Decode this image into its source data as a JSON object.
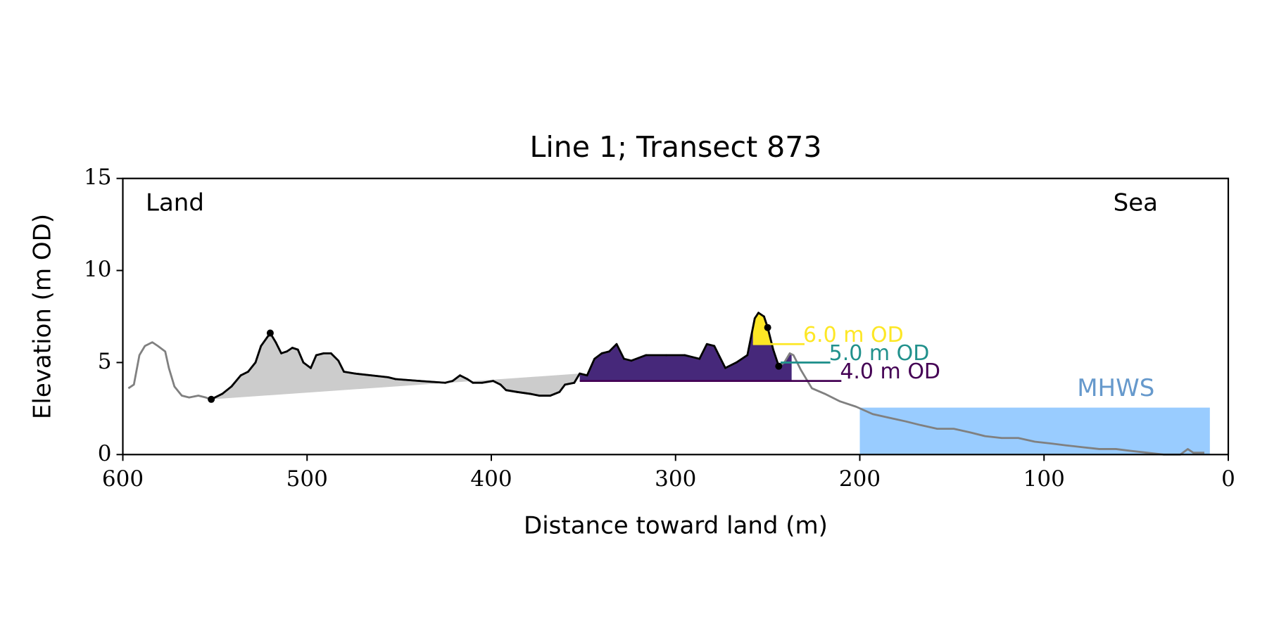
{
  "chart_data": {
    "type": "line",
    "title": "Line 1; Transect 873",
    "x_label": "Distance toward land (m)",
    "y_label": "Elevation (m OD)",
    "xlim": [
      600,
      0
    ],
    "ylim": [
      0,
      15
    ],
    "xticks": [
      600,
      500,
      400,
      300,
      200,
      100,
      0
    ],
    "yticks": [
      0,
      5,
      10,
      15
    ],
    "annotations": {
      "land": "Land",
      "sea": "Sea"
    },
    "series": [
      {
        "color": "#808080",
        "x": [
          597,
          594,
          591,
          588,
          584,
          581,
          577,
          575,
          572,
          568,
          564,
          559,
          555,
          552,
          546,
          541,
          536,
          532,
          528,
          525,
          520,
          517,
          514,
          511,
          508,
          505,
          502,
          498,
          495,
          491,
          487,
          483,
          480,
          474,
          465,
          456,
          452,
          439,
          425,
          421,
          417,
          413,
          410,
          405,
          399,
          395,
          392,
          386,
          379,
          374,
          368,
          363,
          360,
          355,
          352,
          348,
          344,
          340,
          336,
          332,
          328,
          324,
          316,
          305,
          295,
          287,
          283,
          279,
          276,
          273,
          267,
          261,
          257,
          255,
          252,
          250,
          247,
          244,
          241,
          238,
          236,
          232,
          226,
          219,
          211,
          202,
          193,
          184,
          175,
          167,
          158,
          149,
          140,
          132,
          123,
          114,
          105,
          96,
          88,
          79,
          70,
          61,
          53,
          44,
          35,
          26,
          22,
          19,
          13
        ],
        "y": [
          3.6,
          3.8,
          5.4,
          5.9,
          6.1,
          5.9,
          5.6,
          4.7,
          3.7,
          3.2,
          3.1,
          3.2,
          3.1,
          3.0,
          3.3,
          3.7,
          4.3,
          4.5,
          5.0,
          5.9,
          6.6,
          6.1,
          5.5,
          5.6,
          5.8,
          5.7,
          5.0,
          4.7,
          5.4,
          5.5,
          5.5,
          5.1,
          4.5,
          4.4,
          4.3,
          4.2,
          4.1,
          4.0,
          3.9,
          4.0,
          4.3,
          4.1,
          3.9,
          3.9,
          4.0,
          3.8,
          3.5,
          3.4,
          3.3,
          3.2,
          3.2,
          3.4,
          3.8,
          3.9,
          4.4,
          4.3,
          5.2,
          5.5,
          5.6,
          6.0,
          5.2,
          5.1,
          5.4,
          5.4,
          5.4,
          5.2,
          6.0,
          5.9,
          5.3,
          4.7,
          5.0,
          5.4,
          7.4,
          7.7,
          7.5,
          6.9,
          5.7,
          4.8,
          5.0,
          5.5,
          5.4,
          4.6,
          3.6,
          3.3,
          2.9,
          2.6,
          2.2,
          2.0,
          1.8,
          1.6,
          1.4,
          1.4,
          1.2,
          1.0,
          0.9,
          0.9,
          0.7,
          0.6,
          0.5,
          0.4,
          0.3,
          0.3,
          0.2,
          0.1,
          0.0,
          0.0,
          0.3,
          0.1,
          0.1
        ]
      }
    ],
    "highlight": {
      "x_range": [
        552,
        244
      ],
      "color": "#000000"
    },
    "toe_fill": {
      "x_range": [
        552,
        352
      ],
      "color": "#cccccc"
    },
    "markers": {
      "x": [
        552,
        520,
        250,
        244
      ],
      "y": [
        3.0,
        6.6,
        6.9,
        4.8
      ],
      "color": "#000000"
    },
    "levels": [
      {
        "value": 4,
        "label": "4.0 m OD",
        "color": "#440154",
        "x": [
          352,
          210
        ],
        "fill": "#46287a",
        "fill_x": [
          352,
          237
        ]
      },
      {
        "value": 5,
        "label": "5.0 m OD",
        "color": "#21918c",
        "x": [
          243,
          216
        ]
      },
      {
        "value": 6,
        "label": "6.0 m OD",
        "color": "#fde725",
        "x": [
          258,
          230
        ],
        "fill": "#fde725",
        "fill_x": [
          258,
          247
        ]
      }
    ],
    "mhws": {
      "label": "MHWS",
      "value": 2.55,
      "x": [
        200,
        10
      ],
      "color": "#99ccff",
      "label_color": "#6699cc",
      "label_x": 40
    }
  }
}
